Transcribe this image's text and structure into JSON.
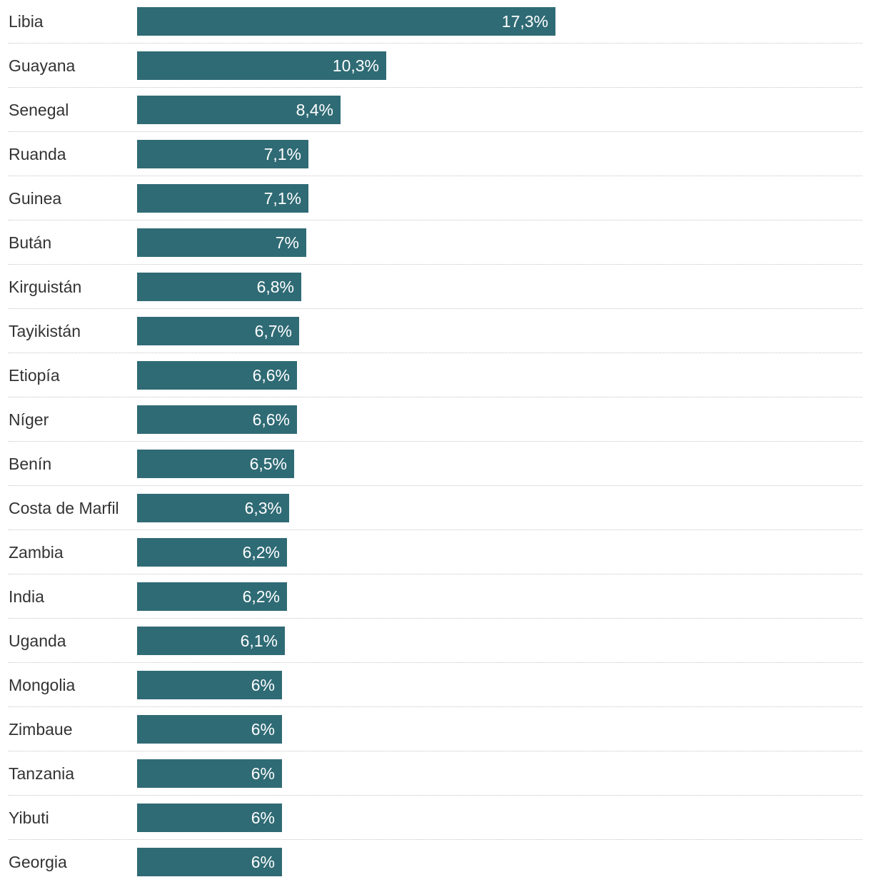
{
  "chart_data": {
    "type": "bar",
    "orientation": "horizontal",
    "title": "",
    "xlabel": "",
    "ylabel": "",
    "xlim": [
      0,
      17.3
    ],
    "grid": false,
    "legend": "none",
    "bar_color": "#2f6b75",
    "categories": [
      "Libia",
      "Guayana",
      "Senegal",
      "Ruanda",
      "Guinea",
      "Bután",
      "Kirguistán",
      "Tayikistán",
      "Etiopía",
      "Níger",
      "Benín",
      "Costa de Marfil",
      "Zambia",
      "India",
      "Uganda",
      "Mongolia",
      "Zimbaue",
      "Tanzania",
      "Yibuti",
      "Georgia"
    ],
    "values": [
      17.3,
      10.3,
      8.4,
      7.1,
      7.1,
      7.0,
      6.8,
      6.7,
      6.6,
      6.6,
      6.5,
      6.3,
      6.2,
      6.2,
      6.1,
      6.0,
      6.0,
      6.0,
      6.0,
      6.0
    ],
    "value_labels": [
      "17,3%",
      "10,3%",
      "8,4%",
      "7,1%",
      "7,1%",
      "7%",
      "6,8%",
      "6,7%",
      "6,6%",
      "6,6%",
      "6,5%",
      "6,3%",
      "6,2%",
      "6,2%",
      "6,1%",
      "6%",
      "6%",
      "6%",
      "6%",
      "6%"
    ]
  }
}
